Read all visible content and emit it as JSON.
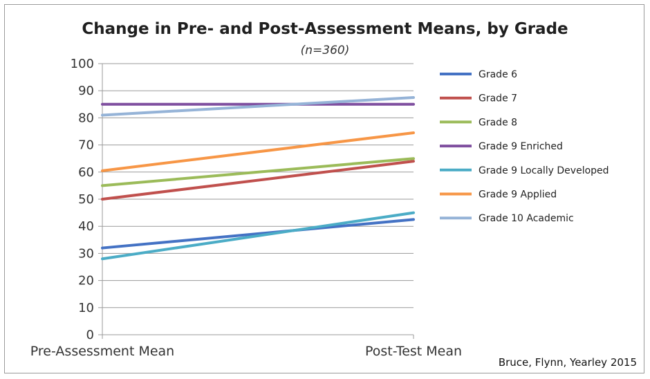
{
  "chart_data": {
    "type": "line",
    "title": "Change in Pre- and Post-Assessment Means, by Grade",
    "subtitle": "(n=360)",
    "categories": [
      "Pre-Assessment Mean",
      "Post-Test Mean"
    ],
    "ylim": [
      0,
      100
    ],
    "yticks": [
      0,
      10,
      20,
      30,
      40,
      50,
      60,
      70,
      80,
      90,
      100
    ],
    "grid": true,
    "legend": "right",
    "series": [
      {
        "name": "Grade 6",
        "values": [
          32,
          42.5
        ],
        "color": "#4472c4"
      },
      {
        "name": "Grade 7",
        "values": [
          50,
          64
        ],
        "color": "#c0504d"
      },
      {
        "name": "Grade 8",
        "values": [
          55,
          65
        ],
        "color": "#9bbb59"
      },
      {
        "name": "Grade 9 Enriched",
        "values": [
          85,
          85
        ],
        "color": "#7f4f9f"
      },
      {
        "name": "Grade 9 Locally Developed",
        "values": [
          28,
          45
        ],
        "color": "#4bacc6"
      },
      {
        "name": "Grade 9 Applied",
        "values": [
          60.5,
          74.5
        ],
        "color": "#f79646"
      },
      {
        "name": "Grade 10 Academic",
        "values": [
          81,
          87.5
        ],
        "color": "#95b3d7"
      }
    ]
  },
  "source_note": "Bruce, Flynn, Yearley 2015"
}
